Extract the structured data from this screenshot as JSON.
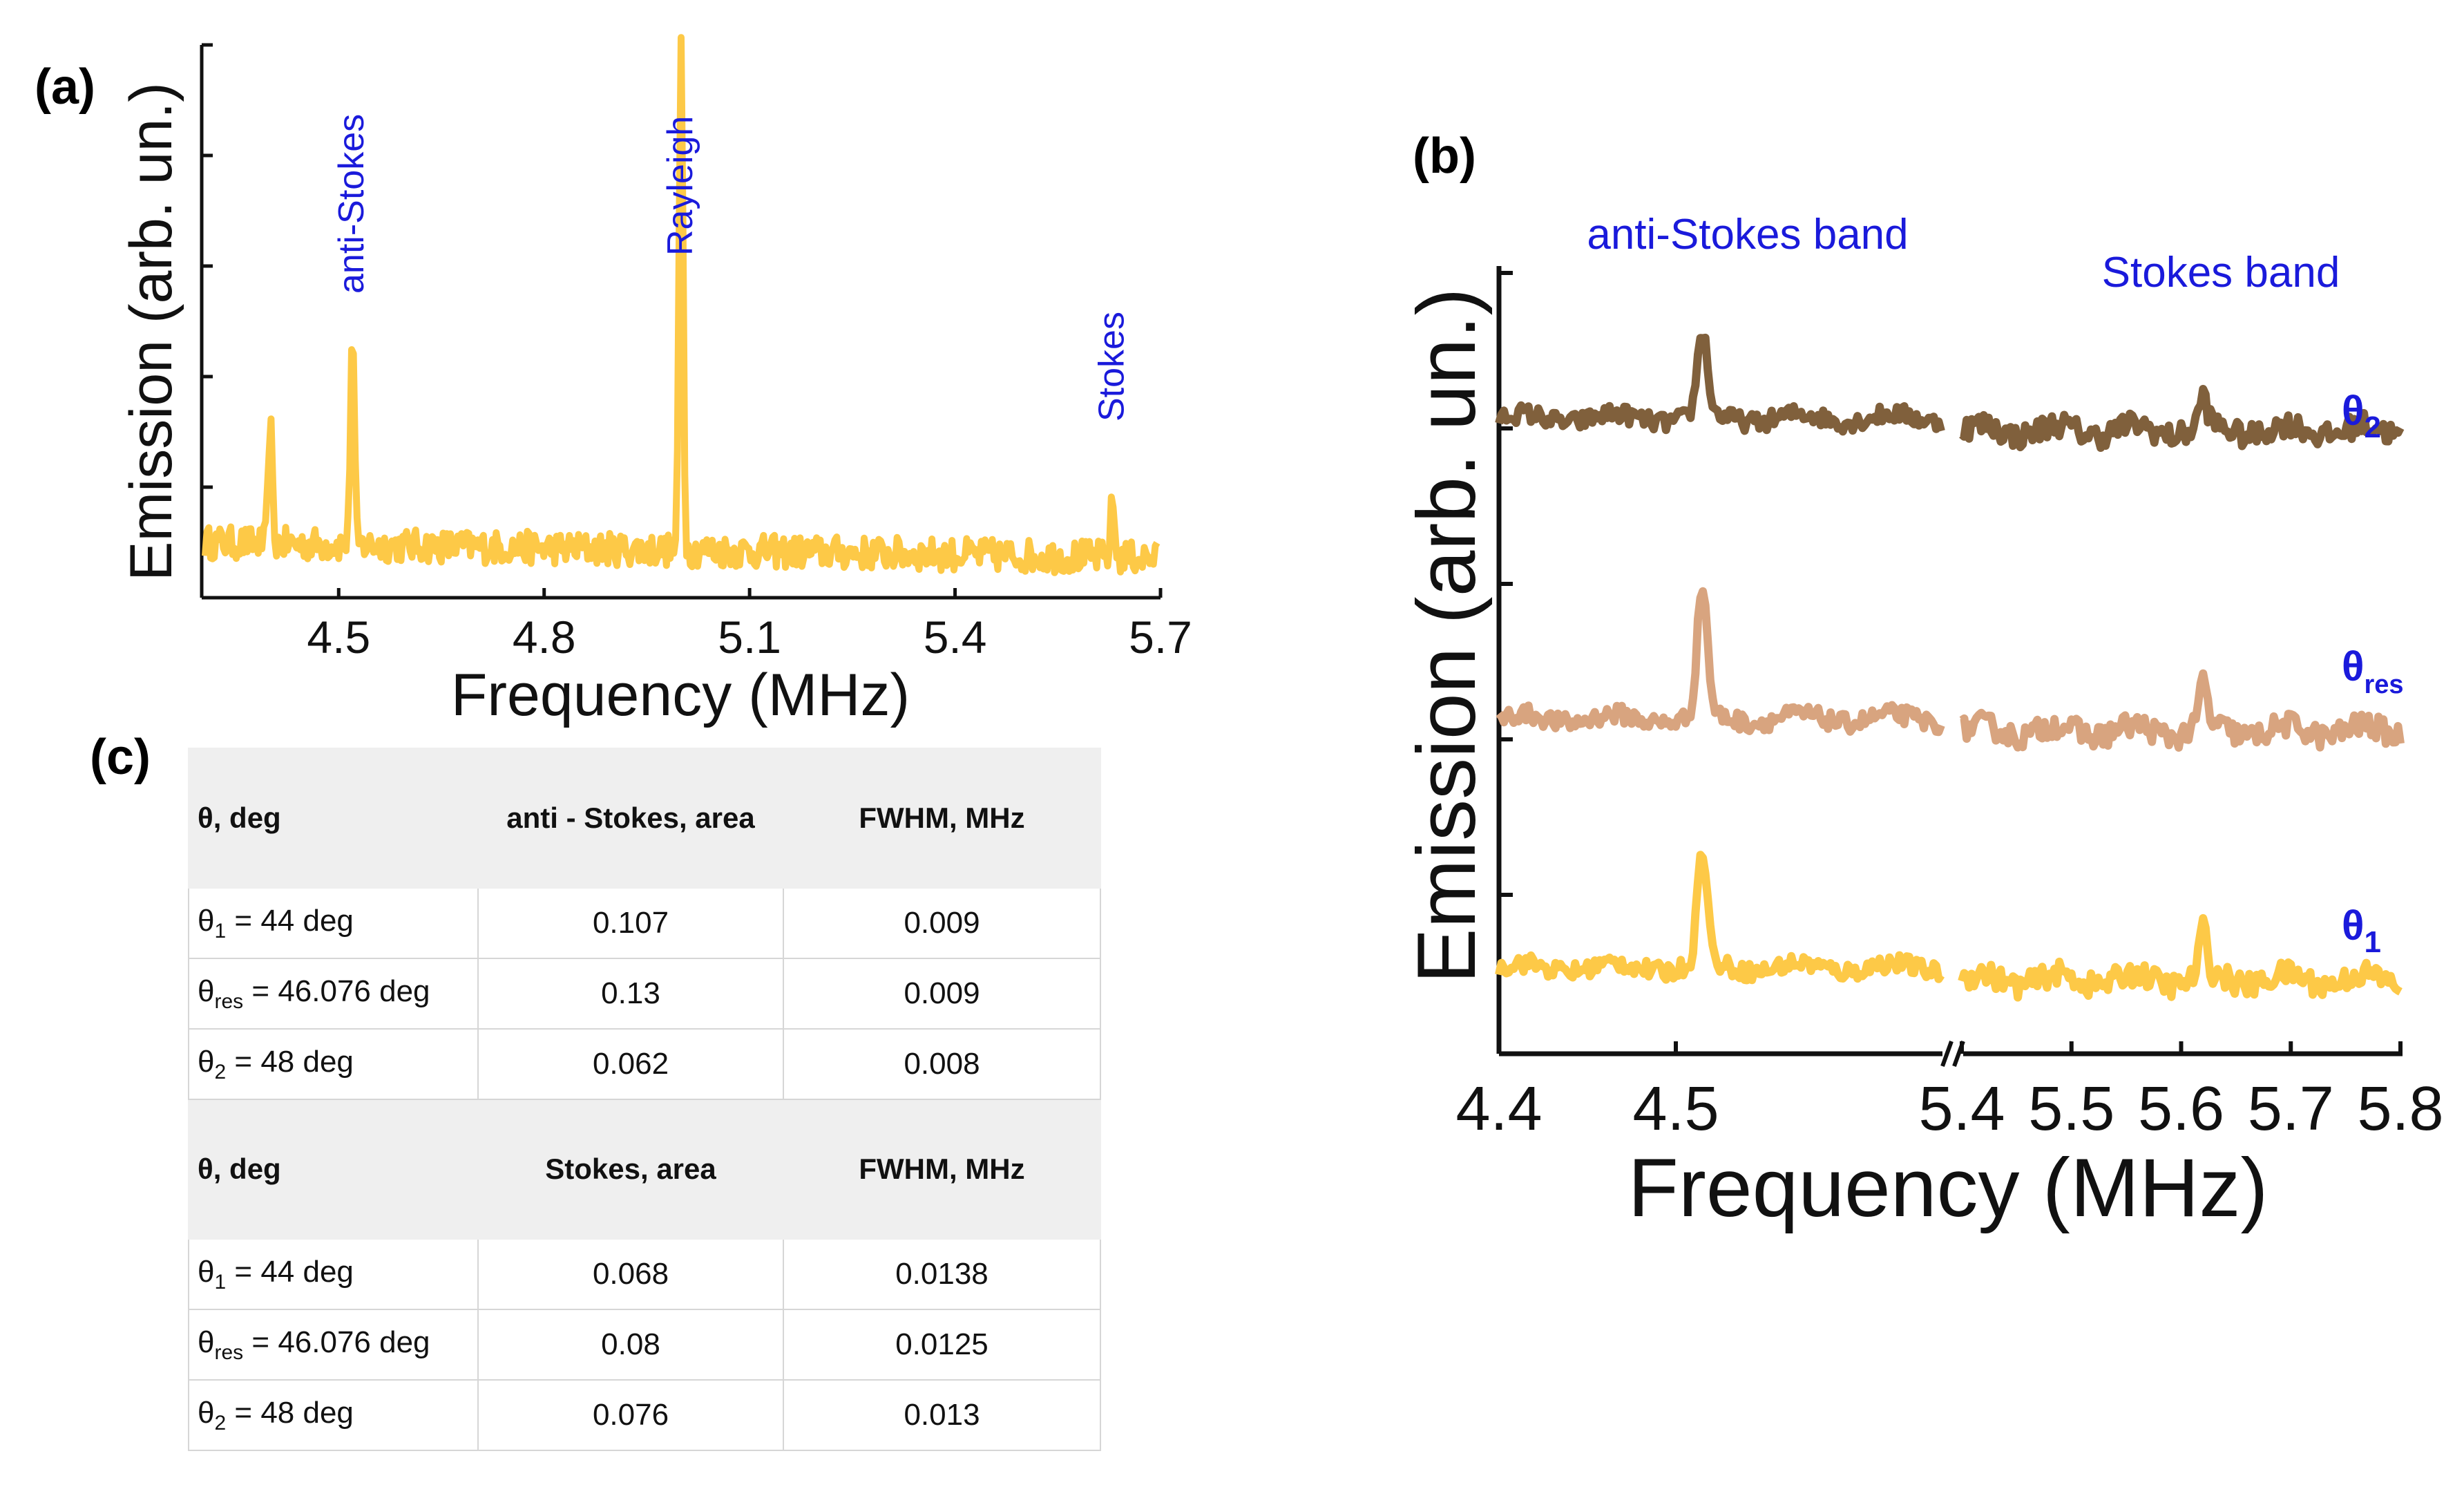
{
  "panel_labels": {
    "a": "(a)",
    "b": "(b)",
    "c": "(c)"
  },
  "theta_symbol": "θ",
  "chart_data": [
    {
      "id": "a",
      "type": "line",
      "xlabel": "Frequency (MHz)",
      "ylabel": "Emission (arb. un.)",
      "xlim": [
        4.3,
        5.7
      ],
      "xticks": [
        4.5,
        4.8,
        5.1,
        5.4,
        5.7
      ],
      "xtick_labels": [
        "4.5",
        "4.8",
        "5.1",
        "5.4",
        "5.7"
      ],
      "ylim": [
        0,
        1
      ],
      "yticks": [
        0.2,
        0.4,
        0.6,
        0.8,
        1.0
      ],
      "grid": false,
      "color": "#fdc947",
      "peaks": [
        {
          "x": 4.4,
          "y": 0.3
        },
        {
          "x": 4.52,
          "y": 0.47
        },
        {
          "x": 5.0,
          "y": 1.0
        },
        {
          "x": 5.63,
          "y": 0.18
        }
      ],
      "baseline": 0.08,
      "annotations": [
        {
          "text": "anti-Stokes",
          "x": 4.52,
          "color": "#1a1adb"
        },
        {
          "text": "Rayleigh",
          "x": 5.0,
          "color": "#1a1adb"
        },
        {
          "text": "Stokes",
          "x": 5.63,
          "color": "#1a1adb"
        }
      ]
    },
    {
      "id": "b",
      "type": "line",
      "xlabel": "Frequency (MHz)",
      "ylabel": "Emission (arb. un.)",
      "broken_x_axis": true,
      "xticks_left": [
        4.4,
        4.5
      ],
      "xticks_right": [
        5.4,
        5.5,
        5.6,
        5.7,
        5.8
      ],
      "xtick_labels": [
        "4.4",
        "4.5",
        "5.4",
        "5.5",
        "5.6",
        "5.7",
        "5.8"
      ],
      "xlim_left": [
        4.4,
        4.65
      ],
      "xlim_right": [
        5.4,
        5.8
      ],
      "band_labels": {
        "anti_stokes": "anti-Stokes band",
        "stokes": "Stokes band"
      },
      "series": [
        {
          "name": "θ",
          "subscript": "2",
          "color": "#80603c",
          "offset": 2.0,
          "anti_stokes_peak": 0.55,
          "stokes_peak": 0.2
        },
        {
          "name": "θ",
          "subscript": "res",
          "color": "#d8a47f",
          "offset": 1.0,
          "anti_stokes_peak": 0.85,
          "stokes_peak": 0.3
        },
        {
          "name": "θ",
          "subscript": "1",
          "color": "#fdc947",
          "offset": 0.0,
          "anti_stokes_peak": 0.75,
          "stokes_peak": 0.3
        }
      ],
      "peak_positions": {
        "anti_stokes": 4.515,
        "stokes": 5.62
      }
    },
    {
      "id": "c",
      "type": "table",
      "tables": [
        {
          "headers": [
            "θ, deg",
            "anti - Stokes, area",
            "FWHM, MHz"
          ],
          "rows": [
            {
              "sub": "1",
              "angle": " = 44 deg",
              "area": "0.107",
              "fwhm": "0.009"
            },
            {
              "sub": "res",
              "angle": " = 46.076 deg",
              "area": "0.13",
              "fwhm": "0.009"
            },
            {
              "sub": "2",
              "angle": " = 48 deg",
              "area": "0.062",
              "fwhm": "0.008"
            }
          ]
        },
        {
          "headers": [
            "θ, deg",
            "Stokes, area",
            "FWHM, MHz"
          ],
          "rows": [
            {
              "sub": "1",
              "angle": " = 44 deg",
              "area": "0.068",
              "fwhm": "0.0138"
            },
            {
              "sub": "res",
              "angle": " = 46.076 deg",
              "area": "0.08",
              "fwhm": "0.0125"
            },
            {
              "sub": "2",
              "angle": " = 48 deg",
              "area": "0.076",
              "fwhm": "0.013"
            }
          ]
        }
      ]
    }
  ]
}
